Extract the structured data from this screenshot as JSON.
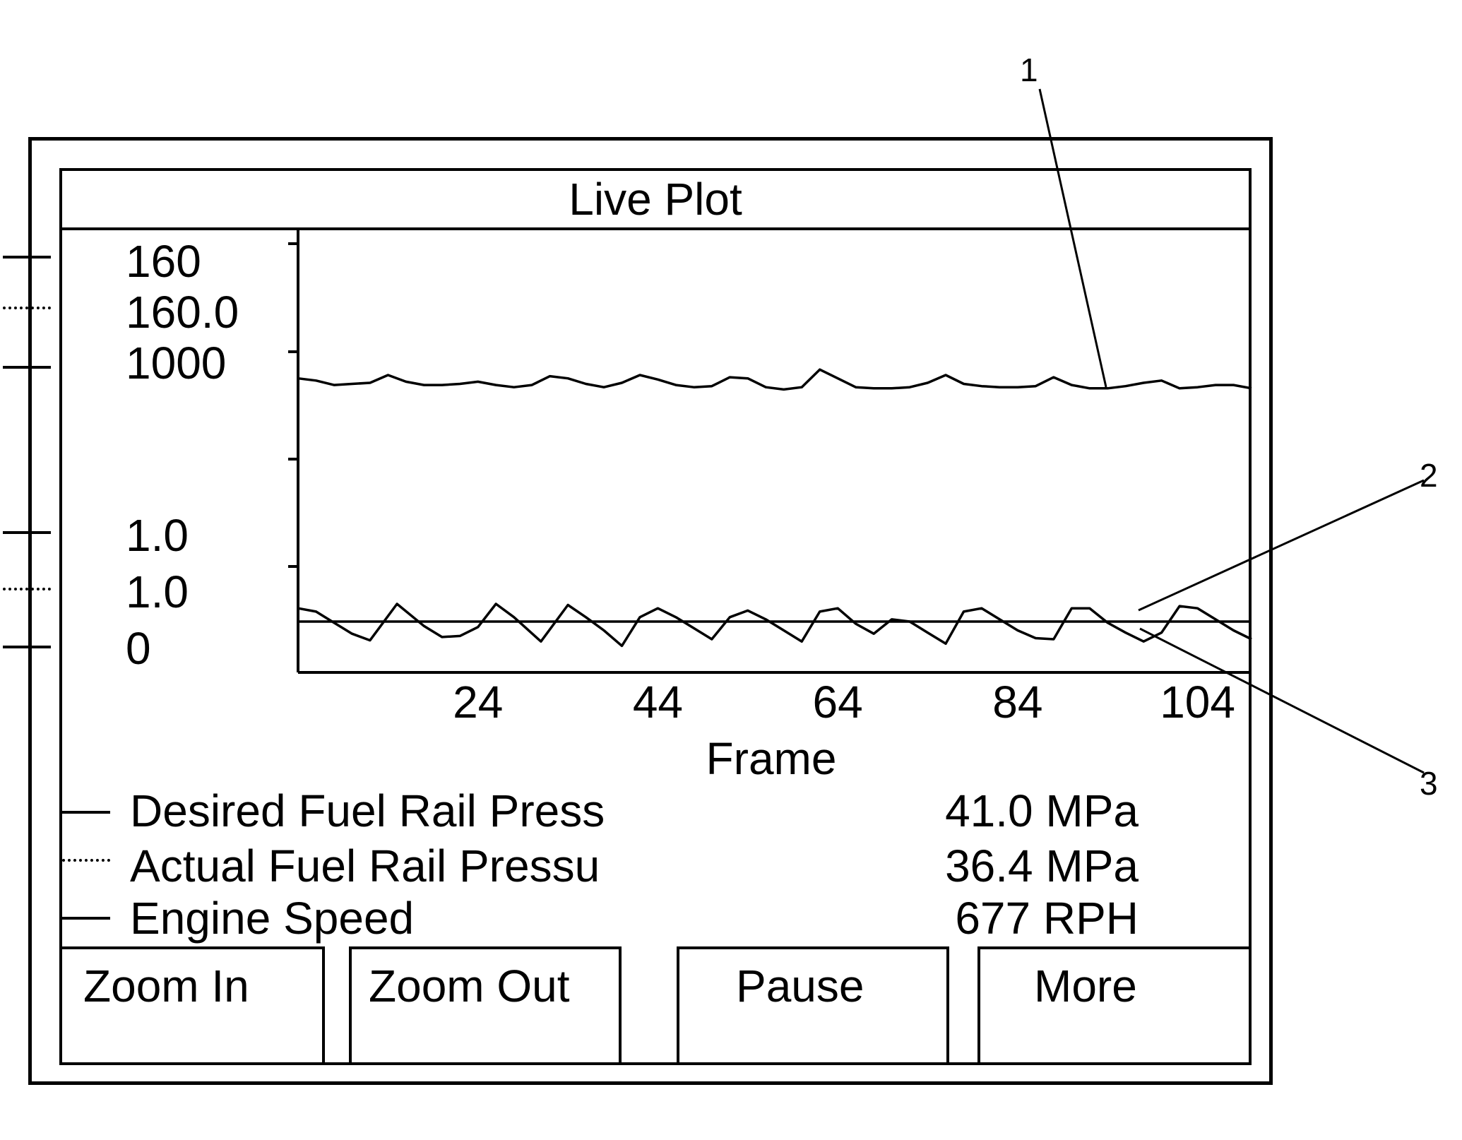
{
  "title": "Live Plot",
  "scale_legend": [
    {
      "label": "160",
      "style": "solid"
    },
    {
      "label": "160.0",
      "style": "dotted"
    },
    {
      "label": "1000",
      "style": "solid"
    },
    {
      "label": "1.0",
      "style": "solid"
    },
    {
      "label": "1.0",
      "style": "dotted"
    },
    {
      "label": "0",
      "style": "solid"
    }
  ],
  "chart_data": {
    "type": "line",
    "xlabel": "Frame",
    "x_ticks": [
      "24",
      "44",
      "64",
      "84",
      "104"
    ],
    "xlim": [
      4,
      110
    ],
    "ylim": [
      0,
      4
    ],
    "series": [
      {
        "name": "Engine Speed",
        "x": [
          4,
          6,
          8,
          10,
          12,
          14,
          16,
          18,
          20,
          22,
          24,
          26,
          28,
          30,
          32,
          34,
          36,
          38,
          40,
          42,
          44,
          46,
          48,
          50,
          52,
          54,
          56,
          58,
          60,
          62,
          64,
          66,
          68,
          70,
          72,
          74,
          76,
          78,
          80,
          82,
          84,
          86,
          88,
          90,
          92,
          94,
          96,
          98,
          100,
          102,
          104,
          106,
          108,
          110
        ],
        "y": [
          2.66,
          2.64,
          2.6,
          2.61,
          2.62,
          2.69,
          2.63,
          2.6,
          2.6,
          2.61,
          2.63,
          2.6,
          2.58,
          2.6,
          2.68,
          2.66,
          2.61,
          2.58,
          2.62,
          2.69,
          2.65,
          2.6,
          2.58,
          2.59,
          2.67,
          2.66,
          2.58,
          2.56,
          2.58,
          2.74,
          2.66,
          2.58,
          2.57,
          2.57,
          2.58,
          2.62,
          2.69,
          2.61,
          2.59,
          2.58,
          2.58,
          2.59,
          2.67,
          2.6,
          2.57,
          2.57,
          2.59,
          2.62,
          2.64,
          2.57,
          2.58,
          2.6,
          2.6,
          2.57
        ]
      },
      {
        "name": "Desired Fuel Rail Press",
        "x": [
          4,
          110
        ],
        "y": [
          0.46,
          0.46
        ]
      },
      {
        "name": "Actual Fuel Rail Pressu",
        "x": [
          4,
          6,
          8,
          10,
          12,
          15,
          18,
          20,
          22,
          24,
          26,
          28,
          31,
          34,
          36,
          38,
          40,
          42,
          44,
          46,
          48,
          50,
          52,
          54,
          56,
          58,
          60,
          62,
          64,
          66,
          68,
          70,
          72,
          74,
          76,
          78,
          80,
          82,
          84,
          86,
          88,
          90,
          92,
          94,
          96,
          98,
          100,
          102,
          104,
          106,
          108,
          110
        ],
        "y": [
          0.58,
          0.55,
          0.45,
          0.35,
          0.29,
          0.62,
          0.42,
          0.32,
          0.33,
          0.41,
          0.62,
          0.5,
          0.28,
          0.61,
          0.5,
          0.38,
          0.24,
          0.5,
          0.58,
          0.5,
          0.4,
          0.3,
          0.5,
          0.56,
          0.48,
          0.38,
          0.28,
          0.55,
          0.58,
          0.44,
          0.35,
          0.48,
          0.46,
          0.36,
          0.26,
          0.55,
          0.58,
          0.48,
          0.38,
          0.31,
          0.3,
          0.58,
          0.58,
          0.45,
          0.36,
          0.28,
          0.36,
          0.6,
          0.58,
          0.48,
          0.38,
          0.3
        ]
      }
    ]
  },
  "readouts": [
    {
      "label": "Desired Fuel Rail Press",
      "value": "41.0 MPa",
      "style": "solid"
    },
    {
      "label": "Actual Fuel Rail Pressu",
      "value": "36.4 MPa",
      "style": "dotted"
    },
    {
      "label": "Engine Speed",
      "value": "677 RPH",
      "style": "solid"
    }
  ],
  "buttons": {
    "zoom_in": "Zoom In",
    "zoom_out": "Zoom Out",
    "pause": "Pause",
    "more": "More"
  },
  "callouts": [
    "1",
    "2",
    "3"
  ]
}
